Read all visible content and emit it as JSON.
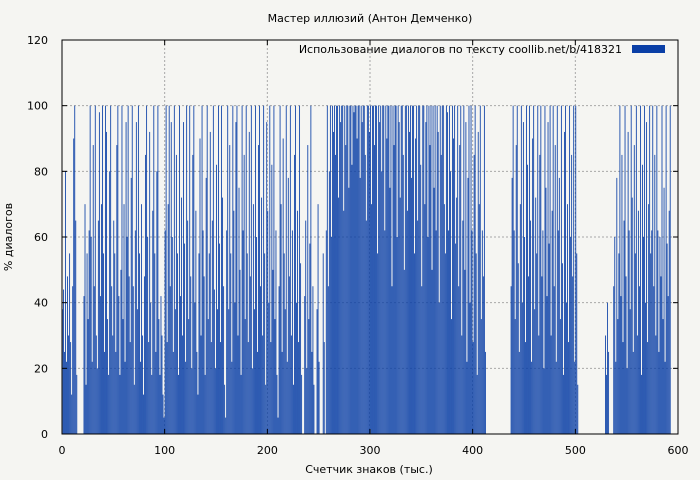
{
  "chart_data": {
    "type": "bar",
    "title": "Мастер иллюзий (Антон Демченко)",
    "xlabel": "Счетчик знаков (тыс.)",
    "ylabel": "% диалогов",
    "xlim": [
      0,
      600
    ],
    "ylim": [
      0,
      120
    ],
    "xticks": [
      0,
      100,
      200,
      300,
      400,
      500,
      600
    ],
    "yticks": [
      0,
      20,
      40,
      60,
      80,
      100,
      120
    ],
    "grid": true,
    "legend_position": "top-right",
    "series": [
      {
        "name": "Использование диалогов по тексту  coollib.net/b/418321",
        "color": "#0a3fa6",
        "bin_width": 1,
        "x_start": 0,
        "values": [
          38,
          44,
          25,
          80,
          22,
          48,
          30,
          55,
          28,
          12,
          45,
          90,
          100,
          65,
          18,
          0,
          0,
          0,
          0,
          0,
          0,
          42,
          70,
          15,
          55,
          35,
          62,
          100,
          60,
          22,
          88,
          45,
          100,
          30,
          20,
          65,
          98,
          42,
          70,
          100,
          55,
          25,
          100,
          92,
          35,
          18,
          80,
          100,
          45,
          30,
          65,
          55,
          25,
          88,
          100,
          42,
          18,
          50,
          100,
          35,
          70,
          22,
          95,
          60,
          100,
          48,
          28,
          78,
          100,
          45,
          15,
          62,
          95,
          38,
          100,
          55,
          22,
          70,
          30,
          12,
          48,
          85,
          100,
          60,
          28,
          92,
          40,
          18,
          68,
          100,
          55,
          25,
          80,
          100,
          35,
          18,
          42,
          30,
          12,
          5,
          62,
          100,
          28,
          70,
          100,
          45,
          95,
          60,
          25,
          100,
          38,
          85,
          55,
          18,
          100,
          42,
          72,
          30,
          95,
          58,
          22,
          100,
          65,
          35,
          100,
          48,
          20,
          85,
          100,
          40,
          68,
          25,
          12,
          55,
          90,
          30,
          100,
          62,
          48,
          18,
          78,
          100,
          35,
          55,
          92,
          28,
          65,
          100,
          44,
          20,
          82,
          38,
          100,
          58,
          28,
          100,
          72,
          45,
          15,
          5,
          62,
          100,
          38,
          88,
          55,
          22,
          100,
          68,
          40,
          95,
          100,
          30,
          75,
          50,
          18,
          100,
          62,
          85,
          35,
          100,
          55,
          28,
          92,
          48,
          100,
          20,
          70,
          38,
          100,
          60,
          25,
          88,
          100,
          45,
          72,
          30,
          100,
          55,
          15,
          95,
          68,
          40,
          100,
          28,
          82,
          50,
          100,
          35,
          62,
          18,
          5,
          45,
          100,
          70,
          25,
          90,
          55,
          38,
          100,
          22,
          78,
          48,
          100,
          30,
          62,
          15,
          85,
          100,
          40,
          68,
          28,
          100,
          52,
          18,
          0,
          0,
          42,
          65,
          20,
          88,
          35,
          58,
          100,
          25,
          45,
          15,
          0,
          0,
          38,
          70,
          22,
          0,
          0,
          0,
          55,
          28,
          0,
          62,
          100,
          45,
          80,
          100,
          60,
          100,
          92,
          100,
          85,
          100,
          100,
          72,
          100,
          95,
          100,
          100,
          68,
          100,
          88,
          100,
          100,
          75,
          100,
          100,
          82,
          100,
          98,
          100,
          100,
          90,
          100,
          100,
          78,
          100,
          95,
          100,
          100,
          85,
          65,
          100,
          100,
          92,
          100,
          70,
          100,
          100,
          88,
          100,
          100,
          55,
          100,
          95,
          100,
          80,
          100,
          100,
          62,
          100,
          90,
          100,
          100,
          75,
          100,
          45,
          100,
          88,
          100,
          100,
          60,
          100,
          95,
          72,
          100,
          100,
          85,
          50,
          100,
          100,
          68,
          100,
          92,
          100,
          78,
          100,
          100,
          55,
          90,
          100,
          65,
          100,
          100,
          82,
          45,
          100,
          100,
          70,
          95,
          100,
          60,
          100,
          88,
          100,
          50,
          100,
          75,
          100,
          62,
          100,
          92,
          40,
          100,
          85,
          100,
          100,
          70,
          55,
          100,
          98,
          62,
          100,
          80,
          35,
          100,
          90,
          100,
          58,
          72,
          100,
          45,
          88,
          100,
          30,
          65,
          100,
          50,
          95,
          22,
          78,
          100,
          40,
          100,
          62,
          28,
          85,
          100,
          55,
          18,
          92,
          70,
          100,
          35,
          62,
          48,
          100,
          25,
          0,
          0,
          0,
          0,
          0,
          0,
          0,
          0,
          0,
          0,
          0,
          0,
          0,
          0,
          0,
          0,
          0,
          0,
          0,
          0,
          0,
          0,
          0,
          0,
          45,
          78,
          100,
          62,
          35,
          88,
          100,
          52,
          25,
          70,
          100,
          40,
          95,
          60,
          28,
          100,
          82,
          48,
          100,
          65,
          22,
          90,
          100,
          38,
          72,
          55,
          100,
          30,
          85,
          100,
          48,
          62,
          20,
          100,
          75,
          42,
          95,
          58,
          100,
          30,
          68,
          100,
          45,
          88,
          22,
          100,
          62,
          78,
          35,
          100,
          52,
          18,
          92,
          100,
          40,
          70,
          28,
          100,
          60,
          85,
          48,
          100,
          22,
          100,
          55,
          15,
          0,
          0,
          0,
          0,
          0,
          0,
          0,
          0,
          0,
          0,
          0,
          0,
          0,
          0,
          0,
          0,
          0,
          0,
          0,
          0,
          0,
          0,
          0,
          0,
          0,
          0,
          30,
          18,
          40,
          25,
          0,
          0,
          0,
          0,
          45,
          60,
          22,
          78,
          35,
          55,
          100,
          42,
          85,
          28,
          65,
          100,
          48,
          20,
          92,
          62,
          38,
          100,
          72,
          25,
          88,
          55,
          100,
          30,
          68,
          45,
          100,
          18,
          82,
          60,
          100,
          40,
          95,
          28,
          70,
          100,
          55,
          62,
          100,
          45,
          85,
          30,
          100,
          62,
          25,
          60,
          48,
          100,
          35,
          75,
          22,
          100,
          58,
          42,
          68,
          100
        ]
      }
    ]
  }
}
